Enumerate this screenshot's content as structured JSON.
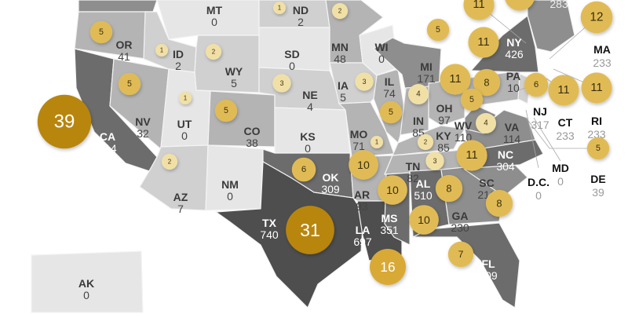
{
  "map": {
    "colors": {
      "bubble_large": "#b8860f",
      "bubble_medium": "#e0bb55",
      "bubble_small": "#f1e0a6",
      "state_zero": "#e6e6e6",
      "state_low": "#d0d0d0",
      "state_mid": "#b4b4b4",
      "state_high": "#8e8e8e",
      "state_very_high": "#6c6c6c",
      "state_max": "#4e4e4e",
      "outside_value": "#9a9a9a"
    },
    "states": [
      {
        "abbr": "OR",
        "value": "41"
      },
      {
        "abbr": "ID",
        "value": "2"
      },
      {
        "abbr": "WY",
        "value": "5"
      },
      {
        "abbr": "NV",
        "value": "32"
      },
      {
        "abbr": "UT",
        "value": "0"
      },
      {
        "abbr": "CO",
        "value": "38"
      },
      {
        "abbr": "CA",
        "value": "414"
      },
      {
        "abbr": "MT",
        "value": "0"
      },
      {
        "abbr": "ND",
        "value": "2"
      },
      {
        "abbr": "SD",
        "value": "0"
      },
      {
        "abbr": "NE",
        "value": "4"
      },
      {
        "abbr": "KS",
        "value": "0"
      },
      {
        "abbr": "MN",
        "value": "48"
      },
      {
        "abbr": "WI",
        "value": "0"
      },
      {
        "abbr": "MI",
        "value": "171"
      },
      {
        "abbr": "IA",
        "value": "5"
      },
      {
        "abbr": "IL",
        "value": "74"
      },
      {
        "abbr": "IN",
        "value": "85"
      },
      {
        "abbr": "OH",
        "value": "97"
      },
      {
        "abbr": "WV",
        "value": "110"
      },
      {
        "abbr": "VA",
        "value": "114"
      },
      {
        "abbr": "KY",
        "value": "85"
      },
      {
        "abbr": "MO",
        "value": "71"
      },
      {
        "abbr": "TN",
        "value": "82"
      },
      {
        "abbr": "NC",
        "value": "304"
      },
      {
        "abbr": "SC",
        "value": "216"
      },
      {
        "abbr": "GA",
        "value": "230"
      },
      {
        "abbr": "AL",
        "value": "510"
      },
      {
        "abbr": "MS",
        "value": "351"
      },
      {
        "abbr": "LA",
        "value": "697"
      },
      {
        "abbr": "AR",
        "value": "93"
      },
      {
        "abbr": "OK",
        "value": "309"
      },
      {
        "abbr": "TX",
        "value": "740"
      },
      {
        "abbr": "NM",
        "value": "0"
      },
      {
        "abbr": "AZ",
        "value": "7"
      },
      {
        "abbr": "FL",
        "value": "309"
      },
      {
        "abbr": "NY",
        "value": "426"
      },
      {
        "abbr": "PA",
        "value": "10"
      },
      {
        "abbr": "AK",
        "value": "0"
      }
    ],
    "outside_states": [
      {
        "abbr": "MA",
        "value": "233"
      },
      {
        "abbr": "NJ",
        "value": "317"
      },
      {
        "abbr": "CT",
        "value": "233"
      },
      {
        "abbr": "RI",
        "value": "233"
      },
      {
        "abbr": "MD",
        "value": "0"
      },
      {
        "abbr": "D.C.",
        "value": "0"
      },
      {
        "abbr": "DE",
        "value": "39"
      },
      {
        "abbr": "",
        "value": "283"
      }
    ],
    "bubbles": [
      {
        "value": "5"
      },
      {
        "value": "1"
      },
      {
        "value": "2"
      },
      {
        "value": "5"
      },
      {
        "value": "1"
      },
      {
        "value": "5"
      },
      {
        "value": "39"
      },
      {
        "value": "2"
      },
      {
        "value": "3"
      },
      {
        "value": "1"
      },
      {
        "value": "2"
      },
      {
        "value": "3"
      },
      {
        "value": "5"
      },
      {
        "value": "4"
      },
      {
        "value": "5"
      },
      {
        "value": "11"
      },
      {
        "value": "11"
      },
      {
        "value": "8"
      },
      {
        "value": "5"
      },
      {
        "value": "4"
      },
      {
        "value": "1"
      },
      {
        "value": "2"
      },
      {
        "value": "3"
      },
      {
        "value": "11"
      },
      {
        "value": "6"
      },
      {
        "value": "10"
      },
      {
        "value": "10"
      },
      {
        "value": "8"
      },
      {
        "value": "8"
      },
      {
        "value": "10"
      },
      {
        "value": "16"
      },
      {
        "value": "7"
      },
      {
        "value": "31"
      },
      {
        "value": "6"
      },
      {
        "value": "11"
      },
      {
        "value": "11"
      },
      {
        "value": "12"
      },
      {
        "value": "5"
      },
      {
        "value": "11"
      },
      {
        "value": ""
      }
    ]
  }
}
